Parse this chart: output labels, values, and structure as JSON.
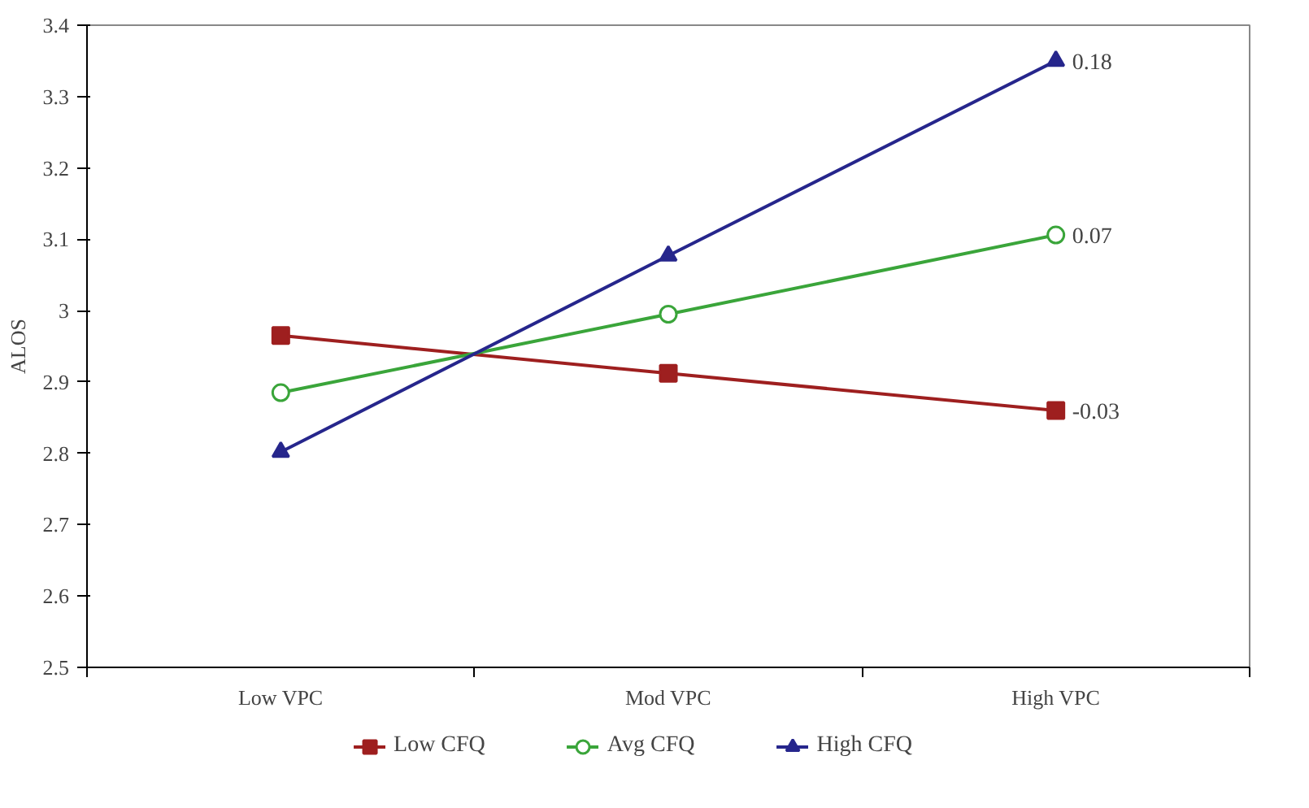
{
  "chart_data": {
    "type": "line",
    "ylabel": "ALOS",
    "categories": [
      "Low VPC",
      "Mod VPC",
      "High VPC"
    ],
    "series": [
      {
        "name": "Low CFQ",
        "color": "#9e1f1f",
        "marker": "square",
        "values": [
          2.965,
          2.912,
          2.86
        ]
      },
      {
        "name": "Avg CFQ",
        "color": "#3aa53a",
        "marker": "circle",
        "values": [
          2.885,
          2.995,
          3.106
        ]
      },
      {
        "name": "High CFQ",
        "color": "#26268c",
        "marker": "triangle",
        "values": [
          2.802,
          3.077,
          3.35
        ]
      }
    ],
    "ylim": [
      2.5,
      3.4
    ],
    "yticks": [
      2.5,
      2.6,
      2.7,
      2.8,
      2.9,
      {
        "value": 3,
        "label": "3"
      },
      3.1,
      3.2,
      3.3,
      3.4
    ],
    "grid": false,
    "legend": "bottom",
    "line_style": "solid",
    "annotations": [
      {
        "text": "0.18",
        "x": "High VPC",
        "y": 3.35
      },
      {
        "text": "0.07",
        "x": "High VPC",
        "y": 3.106
      },
      {
        "text": "-0.03",
        "x": "High VPC",
        "y": 2.86
      }
    ]
  }
}
